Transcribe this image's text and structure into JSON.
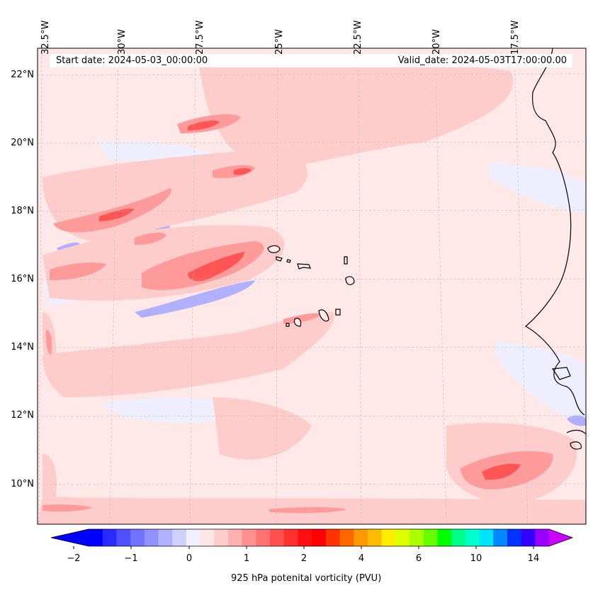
{
  "map": {
    "start_date": "Start date: 2024-05-03_00:00:00",
    "valid_date": "Valid_date: 2024-05-03T17:00:00.00",
    "lon_labels": [
      "32.5°W",
      "30°W",
      "27.5°W",
      "25°W",
      "22.5°W",
      "20°W",
      "17.5°W"
    ],
    "lat_labels": [
      "22°N",
      "20°N",
      "18°N",
      "16°N",
      "14°N",
      "12°N",
      "10°N"
    ],
    "background_color": "#ffe8e8",
    "coastline_color": "#000000"
  },
  "colorbar": {
    "label": "925 hPa potenital vorticity (PVU)",
    "tick_labels": [
      "−2",
      "−1",
      "0",
      "1",
      "2",
      "4",
      "6",
      "10",
      "14"
    ],
    "colors": [
      "#0000ff",
      "#2a2aff",
      "#5050ff",
      "#7272ff",
      "#9090ff",
      "#b0b0ff",
      "#d0d0ff",
      "#efefff",
      "#ffe6e6",
      "#ffcccc",
      "#ffb0b0",
      "#ff9090",
      "#ff7272",
      "#ff5050",
      "#ff3030",
      "#ff1010",
      "#ff0000",
      "#ff3300",
      "#ff6600",
      "#ff9900",
      "#ffbb00",
      "#ffee00",
      "#ddff00",
      "#aaff00",
      "#66ff00",
      "#00ff00",
      "#00ff88",
      "#00ffcc",
      "#00e5ff",
      "#0088ff",
      "#0033ff",
      "#3300ff",
      "#9900ff"
    ],
    "low_color": "#0000ff",
    "high_color": "#cc00ff"
  }
}
